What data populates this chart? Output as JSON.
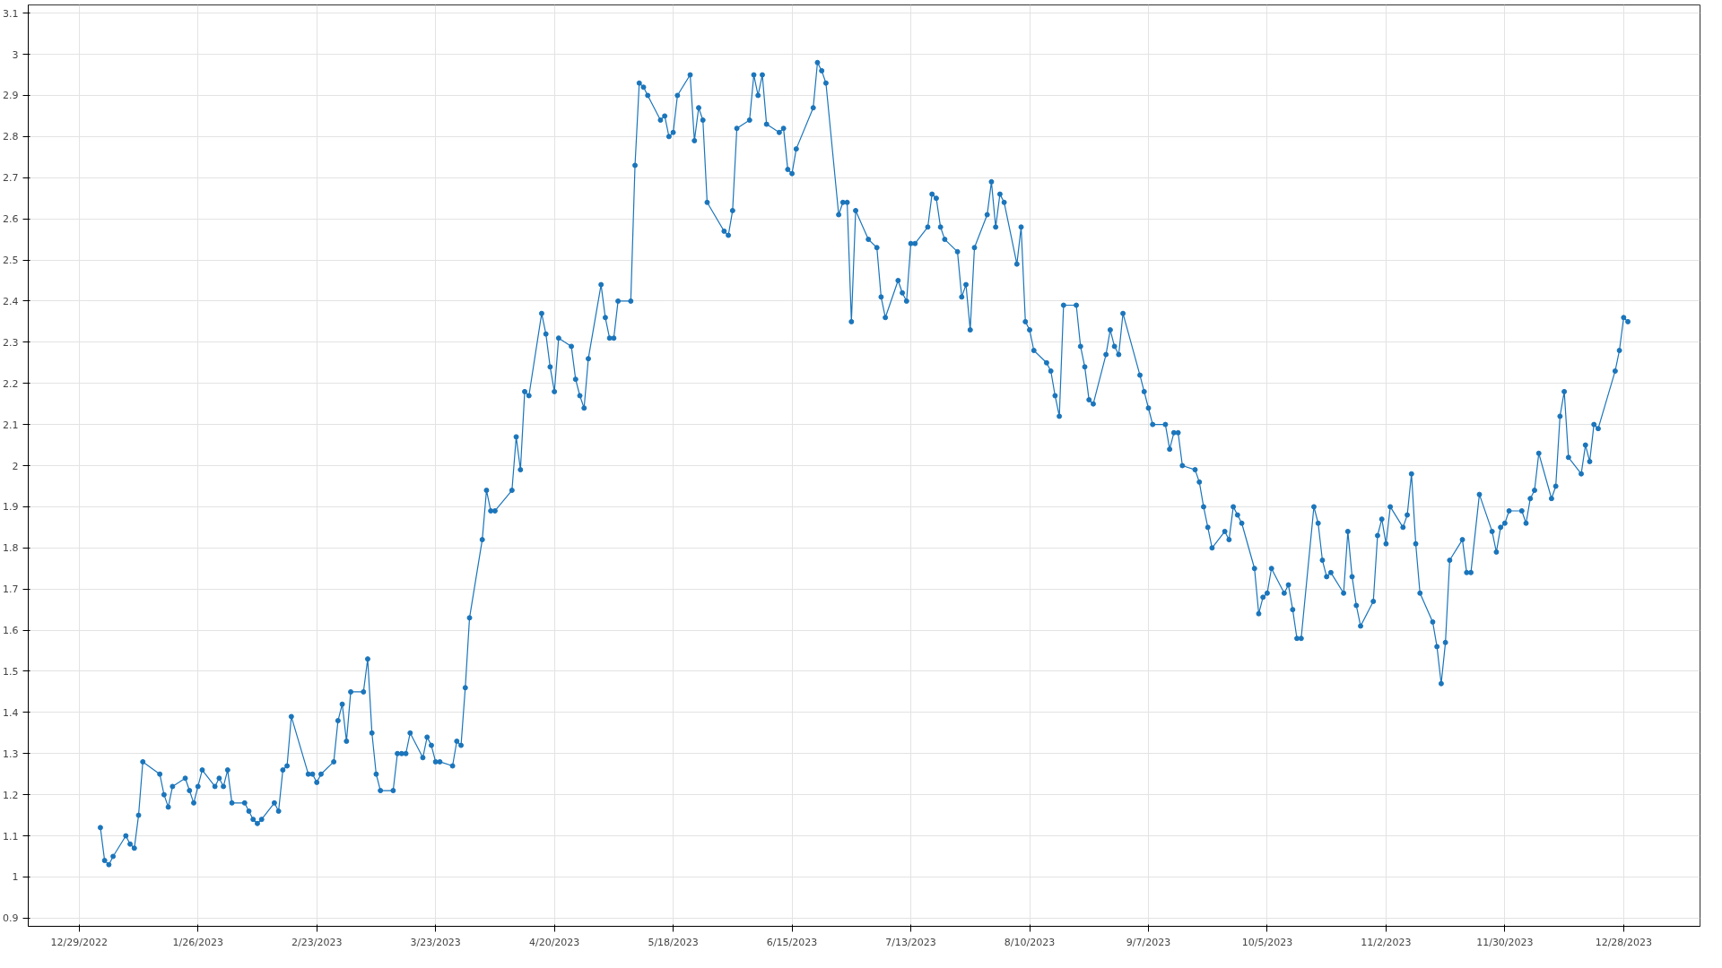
{
  "chart_data": {
    "type": "line",
    "grid": true,
    "marker": "circle",
    "line_style": "solid",
    "xlim": [
      "2022-12-17",
      "2024-01-15"
    ],
    "ylim": [
      0.88,
      3.12
    ],
    "xticks": [
      {
        "value": "2022-12-29",
        "label": "12/29/2022"
      },
      {
        "value": "2023-01-26",
        "label": "1/26/2023"
      },
      {
        "value": "2023-02-23",
        "label": "2/23/2023"
      },
      {
        "value": "2023-03-23",
        "label": "3/23/2023"
      },
      {
        "value": "2023-04-20",
        "label": "4/20/2023"
      },
      {
        "value": "2023-05-18",
        "label": "5/18/2023"
      },
      {
        "value": "2023-06-15",
        "label": "6/15/2023"
      },
      {
        "value": "2023-07-13",
        "label": "7/13/2023"
      },
      {
        "value": "2023-08-10",
        "label": "8/10/2023"
      },
      {
        "value": "2023-09-07",
        "label": "9/7/2023"
      },
      {
        "value": "2023-10-05",
        "label": "10/5/2023"
      },
      {
        "value": "2023-11-02",
        "label": "11/2/2023"
      },
      {
        "value": "2023-11-30",
        "label": "11/30/2023"
      },
      {
        "value": "2023-12-28",
        "label": "12/28/2023"
      }
    ],
    "yticks": [
      0.9,
      1,
      1.1,
      1.2,
      1.3,
      1.4,
      1.5,
      1.6,
      1.7,
      1.8,
      1.9,
      2,
      2.1,
      2.2,
      2.3,
      2.4,
      2.5,
      2.6,
      2.7,
      2.8,
      2.9,
      3,
      3.1
    ],
    "series": [
      {
        "color": "#1a75bb",
        "x": [
          "2023-01-03",
          "2023-01-04",
          "2023-01-05",
          "2023-01-06",
          "2023-01-09",
          "2023-01-10",
          "2023-01-11",
          "2023-01-12",
          "2023-01-13",
          "2023-01-17",
          "2023-01-18",
          "2023-01-19",
          "2023-01-20",
          "2023-01-23",
          "2023-01-24",
          "2023-01-25",
          "2023-01-26",
          "2023-01-27",
          "2023-01-30",
          "2023-01-31",
          "2023-02-01",
          "2023-02-02",
          "2023-02-03",
          "2023-02-06",
          "2023-02-07",
          "2023-02-08",
          "2023-02-09",
          "2023-02-10",
          "2023-02-13",
          "2023-02-14",
          "2023-02-15",
          "2023-02-16",
          "2023-02-17",
          "2023-02-21",
          "2023-02-22",
          "2023-02-23",
          "2023-02-24",
          "2023-02-27",
          "2023-02-28",
          "2023-03-01",
          "2023-03-02",
          "2023-03-03",
          "2023-03-06",
          "2023-03-07",
          "2023-03-08",
          "2023-03-09",
          "2023-03-10",
          "2023-03-13",
          "2023-03-14",
          "2023-03-15",
          "2023-03-16",
          "2023-03-17",
          "2023-03-20",
          "2023-03-21",
          "2023-03-22",
          "2023-03-23",
          "2023-03-24",
          "2023-03-27",
          "2023-03-28",
          "2023-03-29",
          "2023-03-30",
          "2023-03-31",
          "2023-04-03",
          "2023-04-04",
          "2023-04-05",
          "2023-04-06",
          "2023-04-10",
          "2023-04-11",
          "2023-04-12",
          "2023-04-13",
          "2023-04-14",
          "2023-04-17",
          "2023-04-18",
          "2023-04-19",
          "2023-04-20",
          "2023-04-21",
          "2023-04-24",
          "2023-04-25",
          "2023-04-26",
          "2023-04-27",
          "2023-04-28",
          "2023-05-01",
          "2023-05-02",
          "2023-05-03",
          "2023-05-04",
          "2023-05-05",
          "2023-05-08",
          "2023-05-09",
          "2023-05-10",
          "2023-05-11",
          "2023-05-12",
          "2023-05-15",
          "2023-05-16",
          "2023-05-17",
          "2023-05-18",
          "2023-05-19",
          "2023-05-22",
          "2023-05-23",
          "2023-05-24",
          "2023-05-25",
          "2023-05-26",
          "2023-05-30",
          "2023-05-31",
          "2023-06-01",
          "2023-06-02",
          "2023-06-05",
          "2023-06-06",
          "2023-06-07",
          "2023-06-08",
          "2023-06-09",
          "2023-06-12",
          "2023-06-13",
          "2023-06-14",
          "2023-06-15",
          "2023-06-16",
          "2023-06-20",
          "2023-06-21",
          "2023-06-22",
          "2023-06-23",
          "2023-06-26",
          "2023-06-27",
          "2023-06-28",
          "2023-06-29",
          "2023-06-30",
          "2023-07-03",
          "2023-07-05",
          "2023-07-06",
          "2023-07-07",
          "2023-07-10",
          "2023-07-11",
          "2023-07-12",
          "2023-07-13",
          "2023-07-14",
          "2023-07-17",
          "2023-07-18",
          "2023-07-19",
          "2023-07-20",
          "2023-07-21",
          "2023-07-24",
          "2023-07-25",
          "2023-07-26",
          "2023-07-27",
          "2023-07-28",
          "2023-07-31",
          "2023-08-01",
          "2023-08-02",
          "2023-08-03",
          "2023-08-04",
          "2023-08-07",
          "2023-08-08",
          "2023-08-09",
          "2023-08-10",
          "2023-08-11",
          "2023-08-14",
          "2023-08-15",
          "2023-08-16",
          "2023-08-17",
          "2023-08-18",
          "2023-08-21",
          "2023-08-22",
          "2023-08-23",
          "2023-08-24",
          "2023-08-25",
          "2023-08-28",
          "2023-08-29",
          "2023-08-30",
          "2023-08-31",
          "2023-09-01",
          "2023-09-05",
          "2023-09-06",
          "2023-09-07",
          "2023-09-08",
          "2023-09-11",
          "2023-09-12",
          "2023-09-13",
          "2023-09-14",
          "2023-09-15",
          "2023-09-18",
          "2023-09-19",
          "2023-09-20",
          "2023-09-21",
          "2023-09-22",
          "2023-09-25",
          "2023-09-26",
          "2023-09-27",
          "2023-09-28",
          "2023-09-29",
          "2023-10-02",
          "2023-10-03",
          "2023-10-04",
          "2023-10-05",
          "2023-10-06",
          "2023-10-09",
          "2023-10-10",
          "2023-10-11",
          "2023-10-12",
          "2023-10-13",
          "2023-10-16",
          "2023-10-17",
          "2023-10-18",
          "2023-10-19",
          "2023-10-20",
          "2023-10-23",
          "2023-10-24",
          "2023-10-25",
          "2023-10-26",
          "2023-10-27",
          "2023-10-30",
          "2023-10-31",
          "2023-11-01",
          "2023-11-02",
          "2023-11-03",
          "2023-11-06",
          "2023-11-07",
          "2023-11-08",
          "2023-11-09",
          "2023-11-10",
          "2023-11-13",
          "2023-11-14",
          "2023-11-15",
          "2023-11-16",
          "2023-11-17",
          "2023-11-20",
          "2023-11-21",
          "2023-11-22",
          "2023-11-24",
          "2023-11-27",
          "2023-11-28",
          "2023-11-29",
          "2023-11-30",
          "2023-12-01",
          "2023-12-04",
          "2023-12-05",
          "2023-12-06",
          "2023-12-07",
          "2023-12-08",
          "2023-12-11",
          "2023-12-12",
          "2023-12-13",
          "2023-12-14",
          "2023-12-15",
          "2023-12-18",
          "2023-12-19",
          "2023-12-20",
          "2023-12-21",
          "2023-12-22",
          "2023-12-26",
          "2023-12-27",
          "2023-12-28",
          "2023-12-29"
        ],
        "values": [
          1.12,
          1.04,
          1.03,
          1.05,
          1.1,
          1.08,
          1.07,
          1.15,
          1.28,
          1.25,
          1.2,
          1.17,
          1.22,
          1.24,
          1.21,
          1.18,
          1.22,
          1.26,
          1.22,
          1.24,
          1.22,
          1.26,
          1.18,
          1.18,
          1.16,
          1.14,
          1.13,
          1.14,
          1.18,
          1.16,
          1.26,
          1.27,
          1.39,
          1.25,
          1.25,
          1.23,
          1.25,
          1.28,
          1.38,
          1.42,
          1.33,
          1.45,
          1.45,
          1.53,
          1.35,
          1.25,
          1.21,
          1.21,
          1.3,
          1.3,
          1.3,
          1.35,
          1.29,
          1.34,
          1.32,
          1.28,
          1.28,
          1.27,
          1.33,
          1.32,
          1.46,
          1.63,
          1.82,
          1.94,
          1.89,
          1.89,
          1.94,
          2.07,
          1.99,
          2.18,
          2.17,
          2.37,
          2.32,
          2.24,
          2.18,
          2.31,
          2.29,
          2.21,
          2.17,
          2.14,
          2.26,
          2.44,
          2.36,
          2.31,
          2.31,
          2.4,
          2.4,
          2.73,
          2.93,
          2.92,
          2.9,
          2.84,
          2.85,
          2.8,
          2.81,
          2.9,
          2.95,
          2.79,
          2.87,
          2.84,
          2.64,
          2.57,
          2.56,
          2.62,
          2.82,
          2.84,
          2.95,
          2.9,
          2.95,
          2.83,
          2.81,
          2.82,
          2.72,
          2.71,
          2.77,
          2.87,
          2.98,
          2.96,
          2.93,
          2.61,
          2.64,
          2.64,
          2.35,
          2.62,
          2.55,
          2.53,
          2.41,
          2.36,
          2.45,
          2.42,
          2.4,
          2.54,
          2.54,
          2.58,
          2.66,
          2.65,
          2.58,
          2.55,
          2.52,
          2.41,
          2.44,
          2.33,
          2.53,
          2.61,
          2.69,
          2.58,
          2.66,
          2.64,
          2.49,
          2.58,
          2.35,
          2.33,
          2.28,
          2.25,
          2.23,
          2.17,
          2.12,
          2.39,
          2.39,
          2.29,
          2.24,
          2.16,
          2.15,
          2.27,
          2.33,
          2.29,
          2.27,
          2.37,
          2.22,
          2.18,
          2.14,
          2.1,
          2.1,
          2.04,
          2.08,
          2.08,
          2.0,
          1.99,
          1.96,
          1.9,
          1.85,
          1.8,
          1.84,
          1.82,
          1.9,
          1.88,
          1.86,
          1.75,
          1.64,
          1.68,
          1.69,
          1.75,
          1.69,
          1.71,
          1.65,
          1.58,
          1.58,
          1.9,
          1.86,
          1.77,
          1.73,
          1.74,
          1.69,
          1.84,
          1.73,
          1.66,
          1.61,
          1.67,
          1.83,
          1.87,
          1.81,
          1.9,
          1.85,
          1.88,
          1.98,
          1.81,
          1.69,
          1.62,
          1.56,
          1.47,
          1.57,
          1.77,
          1.82,
          1.74,
          1.74,
          1.93,
          1.84,
          1.79,
          1.85,
          1.86,
          1.89,
          1.89,
          1.86,
          1.92,
          1.94,
          2.03,
          1.92,
          1.95,
          2.12,
          2.18,
          2.02,
          1.98,
          2.05,
          2.01,
          2.1,
          2.09,
          2.23,
          2.28,
          2.36,
          2.35
        ]
      }
    ]
  }
}
